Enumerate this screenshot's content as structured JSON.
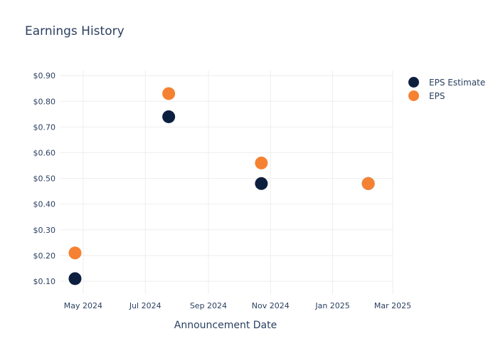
{
  "chart_data": {
    "type": "scatter",
    "title": "Earnings History",
    "xlabel": "Announcement Date",
    "ylabel": "",
    "x_ticks": [
      {
        "date": "2024-05-01",
        "label": "May 2024"
      },
      {
        "date": "2024-07-01",
        "label": "Jul 2024"
      },
      {
        "date": "2024-09-01",
        "label": "Sep 2024"
      },
      {
        "date": "2024-11-01",
        "label": "Nov 2024"
      },
      {
        "date": "2025-01-01",
        "label": "Jan 2025"
      },
      {
        "date": "2025-03-01",
        "label": "Mar 2025"
      }
    ],
    "xlim": [
      "2024-04-08",
      "2025-03-01"
    ],
    "ylim": [
      0.05,
      0.92
    ],
    "y_ticks": [
      {
        "value": 0.1,
        "label": "$0.10"
      },
      {
        "value": 0.2,
        "label": "$0.20"
      },
      {
        "value": 0.3,
        "label": "$0.30"
      },
      {
        "value": 0.4,
        "label": "$0.40"
      },
      {
        "value": 0.5,
        "label": "$0.50"
      },
      {
        "value": 0.6,
        "label": "$0.60"
      },
      {
        "value": 0.7,
        "label": "$0.70"
      },
      {
        "value": 0.8,
        "label": "$0.80"
      },
      {
        "value": 0.9,
        "label": "$0.90"
      }
    ],
    "grid": true,
    "legend_position": "top-right",
    "series": [
      {
        "name": "EPS Estimate",
        "color": "#0d1f3f",
        "points": [
          {
            "x": "2024-04-23",
            "y": 0.11
          },
          {
            "x": "2024-07-24",
            "y": 0.74
          },
          {
            "x": "2024-10-23",
            "y": 0.48
          },
          {
            "x": "2025-02-05",
            "y": 0.48
          }
        ]
      },
      {
        "name": "EPS",
        "color": "#f58232",
        "points": [
          {
            "x": "2024-04-23",
            "y": 0.21
          },
          {
            "x": "2024-07-24",
            "y": 0.83
          },
          {
            "x": "2024-10-23",
            "y": 0.56
          },
          {
            "x": "2025-02-05",
            "y": 0.48
          }
        ]
      }
    ]
  }
}
